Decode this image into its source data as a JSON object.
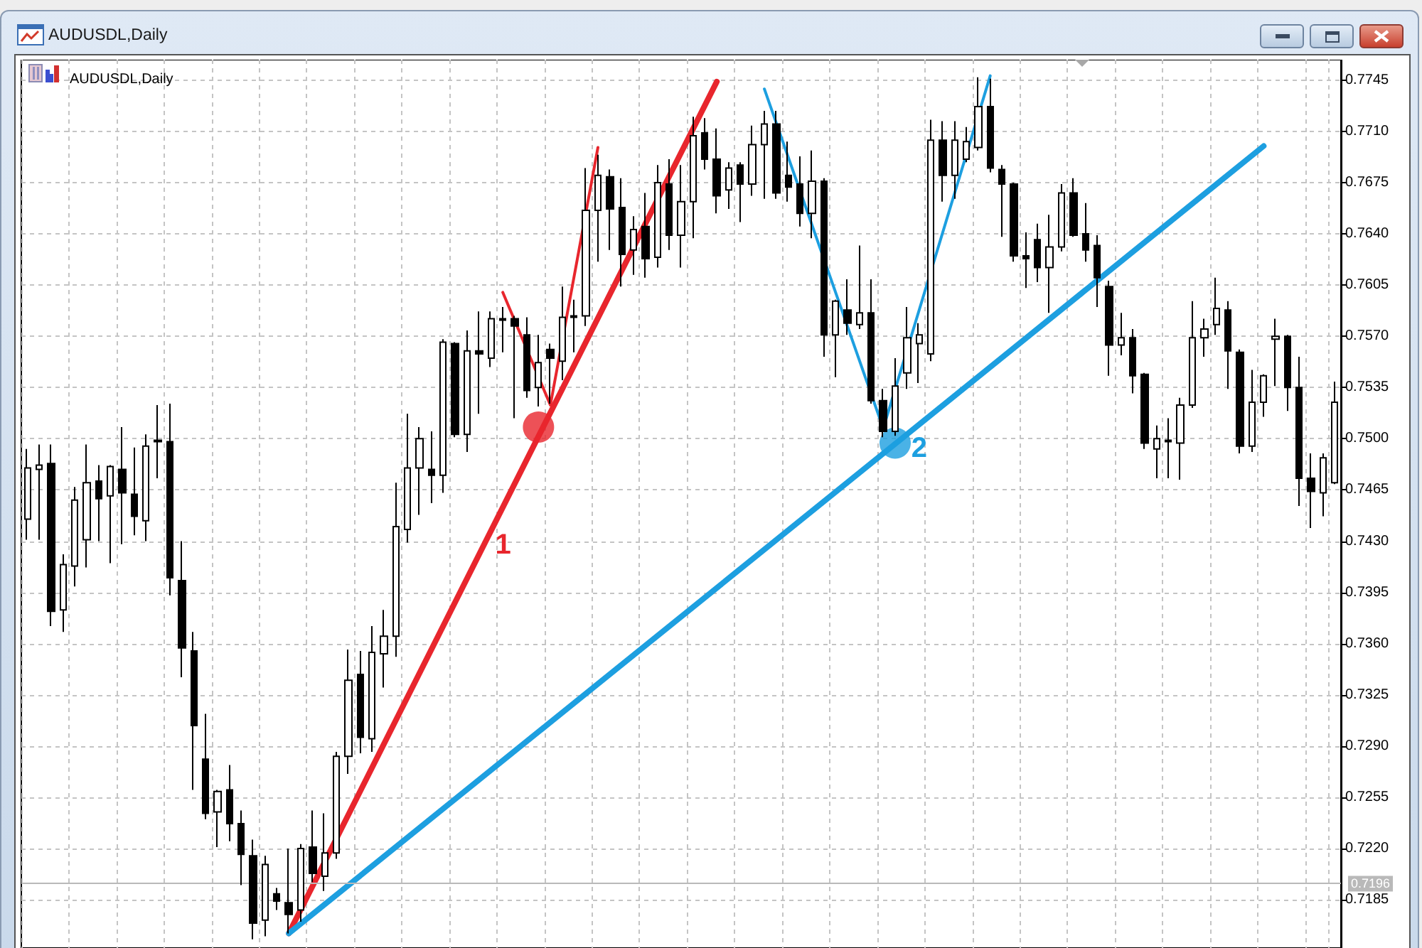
{
  "chart_data": {
    "type": "candlestick",
    "title": "AUDUSDL,Daily",
    "subtitle": "AUDUSDL,Daily",
    "categories": [
      null,
      null,
      null,
      null,
      null,
      null,
      null,
      null,
      null,
      null,
      null,
      null,
      null,
      null,
      null,
      null,
      null,
      null,
      null,
      null,
      null,
      null,
      null,
      null,
      null,
      null,
      null,
      null,
      null,
      null,
      null,
      null,
      null,
      null,
      null,
      null,
      null,
      null,
      null,
      null,
      null,
      null,
      null,
      null,
      null,
      null,
      null,
      null,
      null,
      null,
      null,
      null,
      null,
      null,
      null,
      null,
      null,
      null,
      null,
      null,
      null,
      null,
      null,
      null,
      null,
      null,
      null,
      null,
      null,
      null,
      null,
      null,
      null,
      null,
      null,
      null,
      null,
      null,
      null,
      null,
      null,
      null,
      null,
      null,
      null,
      null,
      null,
      null,
      null,
      null,
      null,
      null,
      null,
      null,
      null,
      null,
      null,
      null,
      null,
      null,
      null,
      null,
      null,
      null,
      null,
      null,
      null,
      null,
      null,
      null,
      null
    ],
    "ohlc": [
      [
        0.7445,
        0.7493,
        0.7431,
        0.748
      ],
      [
        0.7479,
        0.7496,
        0.7431,
        0.7482
      ],
      [
        0.7483,
        0.7496,
        0.7372,
        0.7382
      ],
      [
        0.7383,
        0.7421,
        0.7368,
        0.7414
      ],
      [
        0.7413,
        0.7467,
        0.7399,
        0.7458
      ],
      [
        0.7431,
        0.7496,
        0.7412,
        0.747
      ],
      [
        0.7471,
        0.7482,
        0.743,
        0.7459
      ],
      [
        0.7461,
        0.7482,
        0.7415,
        0.7481
      ],
      [
        0.7479,
        0.7508,
        0.7428,
        0.7463
      ],
      [
        0.7462,
        0.7494,
        0.7434,
        0.7447
      ],
      [
        0.7444,
        0.7503,
        0.743,
        0.7495
      ],
      [
        0.7498,
        0.7523,
        0.7473,
        0.7499
      ],
      [
        0.7498,
        0.7524,
        0.7393,
        0.7405
      ],
      [
        0.7403,
        0.743,
        0.7337,
        0.7357
      ],
      [
        0.7355,
        0.7368,
        0.726,
        0.7304
      ],
      [
        0.7281,
        0.7312,
        0.724,
        0.7244
      ],
      [
        0.7245,
        0.726,
        0.7221,
        0.7259
      ],
      [
        0.726,
        0.7277,
        0.7225,
        0.7237
      ],
      [
        0.7237,
        0.7246,
        0.7195,
        0.7216
      ],
      [
        0.7215,
        0.7226,
        0.7158,
        0.7169
      ],
      [
        0.7171,
        0.7215,
        0.716,
        0.7209
      ],
      [
        0.7189,
        0.7193,
        0.7178,
        0.7184
      ],
      [
        0.7183,
        0.722,
        0.7162,
        0.7175
      ],
      [
        0.7178,
        0.7223,
        0.717,
        0.722
      ],
      [
        0.7221,
        0.7246,
        0.7197,
        0.7203
      ],
      [
        0.7201,
        0.7244,
        0.7191,
        0.7217
      ],
      [
        0.7217,
        0.7286,
        0.7213,
        0.7283
      ],
      [
        0.7283,
        0.7356,
        0.7271,
        0.7335
      ],
      [
        0.7339,
        0.7355,
        0.7285,
        0.7296
      ],
      [
        0.7295,
        0.7372,
        0.7286,
        0.7354
      ],
      [
        0.7353,
        0.7383,
        0.733,
        0.7365
      ],
      [
        0.7365,
        0.747,
        0.7351,
        0.744
      ],
      [
        0.7438,
        0.7517,
        0.7429,
        0.748
      ],
      [
        0.748,
        0.7508,
        0.7448,
        0.75
      ],
      [
        0.7479,
        0.7505,
        0.7456,
        0.7475
      ],
      [
        0.7475,
        0.7568,
        0.7463,
        0.7566
      ],
      [
        0.7565,
        0.7566,
        0.7501,
        0.7503
      ],
      [
        0.7503,
        0.7574,
        0.7491,
        0.756
      ],
      [
        0.756,
        0.7587,
        0.7517,
        0.7558
      ],
      [
        0.7555,
        0.7587,
        0.7549,
        0.7582
      ],
      [
        0.7582,
        0.759,
        0.7559,
        0.7581
      ],
      [
        0.7582,
        0.7584,
        0.7514,
        0.7577
      ],
      [
        0.7571,
        0.7583,
        0.7528,
        0.7533
      ],
      [
        0.7535,
        0.7571,
        0.7522,
        0.7552
      ],
      [
        0.7561,
        0.7565,
        0.7524,
        0.7555
      ],
      [
        0.7553,
        0.7604,
        0.754,
        0.7583
      ],
      [
        0.7584,
        0.7595,
        0.7559,
        0.7583
      ],
      [
        0.7584,
        0.7685,
        0.7577,
        0.7656
      ],
      [
        0.7656,
        0.7694,
        0.7621,
        0.768
      ],
      [
        0.7679,
        0.7684,
        0.7629,
        0.7657
      ],
      [
        0.7658,
        0.7678,
        0.7604,
        0.7626
      ],
      [
        0.7629,
        0.7652,
        0.7612,
        0.7643
      ],
      [
        0.7645,
        0.7668,
        0.761,
        0.7623
      ],
      [
        0.7624,
        0.7687,
        0.7617,
        0.7675
      ],
      [
        0.7674,
        0.7691,
        0.7629,
        0.7639
      ],
      [
        0.7639,
        0.7687,
        0.7617,
        0.7662
      ],
      [
        0.7662,
        0.772,
        0.7637,
        0.7707
      ],
      [
        0.7709,
        0.7719,
        0.7684,
        0.7691
      ],
      [
        0.7691,
        0.7712,
        0.7654,
        0.7666
      ],
      [
        0.767,
        0.7689,
        0.7657,
        0.7685
      ],
      [
        0.7687,
        0.7689,
        0.7648,
        0.7674
      ],
      [
        0.7674,
        0.7714,
        0.7666,
        0.7701
      ],
      [
        0.7701,
        0.7724,
        0.7664,
        0.7715
      ],
      [
        0.7715,
        0.7724,
        0.7664,
        0.7668
      ],
      [
        0.768,
        0.7703,
        0.7662,
        0.7672
      ],
      [
        0.7674,
        0.7693,
        0.7645,
        0.7654
      ],
      [
        0.7654,
        0.7697,
        0.7637,
        0.7676
      ],
      [
        0.7676,
        0.7678,
        0.7556,
        0.7571
      ],
      [
        0.7571,
        0.7595,
        0.7542,
        0.7594
      ],
      [
        0.7588,
        0.7609,
        0.7571,
        0.7579
      ],
      [
        0.7578,
        0.7632,
        0.7575,
        0.7586
      ],
      [
        0.7586,
        0.7609,
        0.7524,
        0.7526
      ],
      [
        0.7526,
        0.7534,
        0.7501,
        0.7505
      ],
      [
        0.7505,
        0.7555,
        0.7502,
        0.7536
      ],
      [
        0.7545,
        0.759,
        0.7534,
        0.7569
      ],
      [
        0.7565,
        0.7579,
        0.7538,
        0.7571
      ],
      [
        0.7558,
        0.7718,
        0.7553,
        0.7704
      ],
      [
        0.7704,
        0.7717,
        0.7662,
        0.768
      ],
      [
        0.768,
        0.7717,
        0.7664,
        0.7704
      ],
      [
        0.7691,
        0.7713,
        0.7689,
        0.7703
      ],
      [
        0.7699,
        0.7747,
        0.7697,
        0.7727
      ],
      [
        0.7727,
        0.7746,
        0.7682,
        0.7685
      ],
      [
        0.7684,
        0.7687,
        0.7638,
        0.7674
      ],
      [
        0.7674,
        0.7675,
        0.7621,
        0.7625
      ],
      [
        0.7625,
        0.7641,
        0.7603,
        0.7623
      ],
      [
        0.7636,
        0.7647,
        0.7607,
        0.7617
      ],
      [
        0.7617,
        0.7653,
        0.7586,
        0.7631
      ],
      [
        0.7631,
        0.7674,
        0.7628,
        0.7668
      ],
      [
        0.7668,
        0.7678,
        0.7638,
        0.7639
      ],
      [
        0.764,
        0.7661,
        0.7621,
        0.7629
      ],
      [
        0.7632,
        0.7639,
        0.759,
        0.761
      ],
      [
        0.7604,
        0.7608,
        0.7543,
        0.7564
      ],
      [
        0.7564,
        0.7586,
        0.7557,
        0.7569
      ],
      [
        0.7569,
        0.7575,
        0.7531,
        0.7543
      ],
      [
        0.7544,
        0.7545,
        0.7493,
        0.7497
      ],
      [
        0.7493,
        0.7509,
        0.7473,
        0.75
      ],
      [
        0.7499,
        0.7514,
        0.7473,
        0.7498
      ],
      [
        0.7497,
        0.7528,
        0.7472,
        0.7523
      ],
      [
        0.7523,
        0.7594,
        0.7521,
        0.7569
      ],
      [
        0.7569,
        0.7582,
        0.7556,
        0.7575
      ],
      [
        0.7578,
        0.761,
        0.7571,
        0.7589
      ],
      [
        0.7588,
        0.7594,
        0.7534,
        0.756
      ],
      [
        0.7559,
        0.7561,
        0.749,
        0.7495
      ],
      [
        0.7495,
        0.7547,
        0.7491,
        0.7525
      ],
      [
        0.7525,
        0.7544,
        0.7515,
        0.7543
      ],
      [
        0.7568,
        0.7582,
        0.7536,
        0.757
      ],
      [
        0.757,
        0.7571,
        0.7519,
        0.7535
      ],
      [
        0.7535,
        0.7556,
        0.7454,
        0.7473
      ],
      [
        0.7473,
        0.749,
        0.7439,
        0.7464
      ],
      [
        0.7463,
        0.749,
        0.7447,
        0.7487
      ],
      [
        0.747,
        0.7539,
        0.7469,
        0.7525
      ]
    ],
    "color": "#000000",
    "series": [
      {
        "type": "line",
        "name": "1",
        "color": "#e8262d",
        "values": [
          null,
          null,
          null,
          null,
          null,
          null,
          null,
          null,
          null,
          null,
          null,
          null,
          null,
          null,
          null,
          null,
          null,
          null,
          null,
          null,
          null,
          null,
          0.7162,
          null,
          null,
          null,
          null,
          null,
          null,
          null,
          null,
          null,
          null,
          null,
          null,
          null,
          null,
          null,
          null,
          0.7437,
          null,
          null,
          null,
          null,
          null,
          null,
          null,
          null,
          null,
          null,
          null,
          null,
          null,
          null,
          null,
          null,
          null,
          null,
          0.7744,
          null,
          null,
          null,
          null,
          null,
          null,
          null,
          null,
          null,
          null,
          null,
          null,
          null,
          null,
          null,
          null,
          null,
          null,
          null,
          null,
          null,
          null,
          null,
          null,
          null,
          null,
          null,
          null,
          null,
          null,
          null,
          null,
          null,
          null,
          null,
          null,
          null,
          null,
          null,
          null,
          null,
          null,
          null,
          null,
          null,
          null,
          null,
          null,
          null,
          null,
          null,
          null
        ]
      },
      {
        "type": "line",
        "name": "2",
        "color": "#1d9fe0",
        "values": [
          null,
          null,
          null,
          null,
          null,
          null,
          null,
          null,
          null,
          null,
          null,
          null,
          null,
          null,
          null,
          null,
          null,
          null,
          null,
          null,
          null,
          null,
          0.7162,
          null,
          null,
          null,
          null,
          null,
          null,
          null,
          null,
          null,
          null,
          null,
          null,
          null,
          null,
          null,
          null,
          null,
          null,
          null,
          null,
          null,
          null,
          null,
          null,
          null,
          null,
          null,
          null,
          null,
          null,
          null,
          null,
          null,
          null,
          null,
          null,
          null,
          null,
          null,
          null,
          null,
          null,
          null,
          null,
          null,
          null,
          null,
          null,
          null,
          null,
          null,
          0.7503,
          null,
          null,
          null,
          null,
          null,
          null,
          null,
          null,
          null,
          null,
          null,
          null,
          null,
          null,
          null,
          null,
          null,
          null,
          null,
          null,
          null,
          null,
          null,
          null,
          null,
          null,
          null,
          null,
          null,
          0.77,
          null,
          null,
          null,
          null,
          null,
          null
        ]
      },
      {
        "type": "line",
        "color": "#e8262d",
        "values": [
          null,
          null,
          null,
          null,
          null,
          null,
          null,
          null,
          null,
          null,
          null,
          null,
          null,
          null,
          null,
          null,
          null,
          null,
          null,
          null,
          null,
          null,
          null,
          null,
          null,
          null,
          null,
          null,
          null,
          null,
          null,
          null,
          null,
          null,
          null,
          null,
          null,
          null,
          null,
          null,
          0.76,
          null,
          null,
          null,
          0.7523,
          null,
          null,
          null,
          0.7699,
          null,
          null,
          null,
          null,
          null,
          null,
          null,
          null,
          null,
          null,
          null,
          null,
          null,
          null,
          null,
          null,
          null,
          null,
          null,
          null,
          null,
          null,
          null,
          null,
          null,
          null,
          null,
          null,
          null,
          null,
          null,
          null,
          null,
          null,
          null,
          null,
          null,
          null,
          null,
          null,
          null,
          null,
          null,
          null,
          null,
          null,
          null,
          null,
          null,
          null,
          null,
          null,
          null,
          null,
          null,
          null,
          null,
          null,
          null,
          null,
          null,
          null
        ]
      },
      {
        "type": "line",
        "color": "#1d9fe0",
        "values": [
          null,
          null,
          null,
          null,
          null,
          null,
          null,
          null,
          null,
          null,
          null,
          null,
          null,
          null,
          null,
          null,
          null,
          null,
          null,
          null,
          null,
          null,
          null,
          null,
          null,
          null,
          null,
          null,
          null,
          null,
          null,
          null,
          null,
          null,
          null,
          null,
          null,
          null,
          null,
          null,
          null,
          null,
          null,
          null,
          null,
          null,
          null,
          null,
          null,
          null,
          null,
          null,
          null,
          null,
          null,
          null,
          null,
          null,
          null,
          null,
          null,
          null,
          0.7739,
          null,
          null,
          null,
          null,
          null,
          null,
          null,
          null,
          null,
          0.7507,
          null,
          null,
          null,
          null,
          null,
          null,
          null,
          null,
          0.7748,
          null,
          null,
          null,
          null,
          null,
          null,
          null,
          null,
          null,
          null,
          null,
          null,
          null,
          null,
          null,
          null,
          null,
          null,
          null,
          null,
          null,
          null,
          null,
          null,
          null,
          null,
          null,
          null,
          null
        ]
      },
      {
        "type": "scatter",
        "color": "#e8262d",
        "marker": "circle",
        "values": [
          null,
          null,
          null,
          null,
          null,
          null,
          null,
          null,
          null,
          null,
          null,
          null,
          null,
          null,
          null,
          null,
          null,
          null,
          null,
          null,
          null,
          null,
          null,
          null,
          null,
          null,
          null,
          null,
          null,
          null,
          null,
          null,
          null,
          null,
          null,
          null,
          null,
          null,
          null,
          null,
          null,
          null,
          null,
          0.7508,
          null,
          null,
          null,
          null,
          null,
          null,
          null,
          null,
          null,
          null,
          null,
          null,
          null,
          null,
          null,
          null,
          null,
          null,
          null,
          null,
          null,
          null,
          null,
          null,
          null,
          null,
          null,
          null,
          null,
          null,
          null,
          null,
          null,
          null,
          null,
          null,
          null,
          null,
          null,
          null,
          null,
          null,
          null,
          null,
          null,
          null,
          null,
          null,
          null,
          null,
          null,
          null,
          null,
          null,
          null,
          null,
          null,
          null,
          null,
          null,
          null,
          null,
          null,
          null,
          null,
          null,
          null
        ]
      },
      {
        "type": "scatter",
        "color": "#1d9fe0",
        "marker": "circle",
        "values": [
          null,
          null,
          null,
          null,
          null,
          null,
          null,
          null,
          null,
          null,
          null,
          null,
          null,
          null,
          null,
          null,
          null,
          null,
          null,
          null,
          null,
          null,
          null,
          null,
          null,
          null,
          null,
          null,
          null,
          null,
          null,
          null,
          null,
          null,
          null,
          null,
          null,
          null,
          null,
          null,
          null,
          null,
          null,
          null,
          null,
          null,
          null,
          null,
          null,
          null,
          null,
          null,
          null,
          null,
          null,
          null,
          null,
          null,
          null,
          null,
          null,
          null,
          null,
          null,
          null,
          null,
          null,
          null,
          null,
          null,
          null,
          null,
          null,
          0.7497,
          null,
          null,
          null,
          null,
          null,
          null,
          null,
          null,
          null,
          null,
          null,
          null,
          null,
          null,
          null,
          null,
          null,
          null,
          null,
          null,
          null,
          null,
          null,
          null,
          null,
          null,
          null,
          null,
          null,
          null,
          null,
          null,
          null,
          null,
          null,
          null,
          null
        ]
      }
    ],
    "ylim": [
      0.7152,
      0.7759
    ],
    "yticks": [
      0.7185,
      {
        "value": 0.722,
        "label": "0.7220"
      },
      0.7255,
      {
        "value": 0.729,
        "label": "0.7290"
      },
      0.7325,
      {
        "value": 0.736,
        "label": "0.7360"
      },
      0.7395,
      {
        "value": 0.743,
        "label": "0.7430"
      },
      0.7465,
      {
        "value": 0.75,
        "label": "0.7500"
      },
      0.7535,
      {
        "value": 0.757,
        "label": "0.7570"
      },
      0.7605,
      {
        "value": 0.764,
        "label": "0.7640"
      },
      0.7675,
      {
        "value": 0.771,
        "label": "0.7710"
      },
      0.7745
    ],
    "tick_labels": "y",
    "grid": true,
    "ref_lines": [
      {
        "axis": "y",
        "value": 0.7196,
        "label": "0.7196",
        "color": "#b9b9b9"
      }
    ]
  }
}
